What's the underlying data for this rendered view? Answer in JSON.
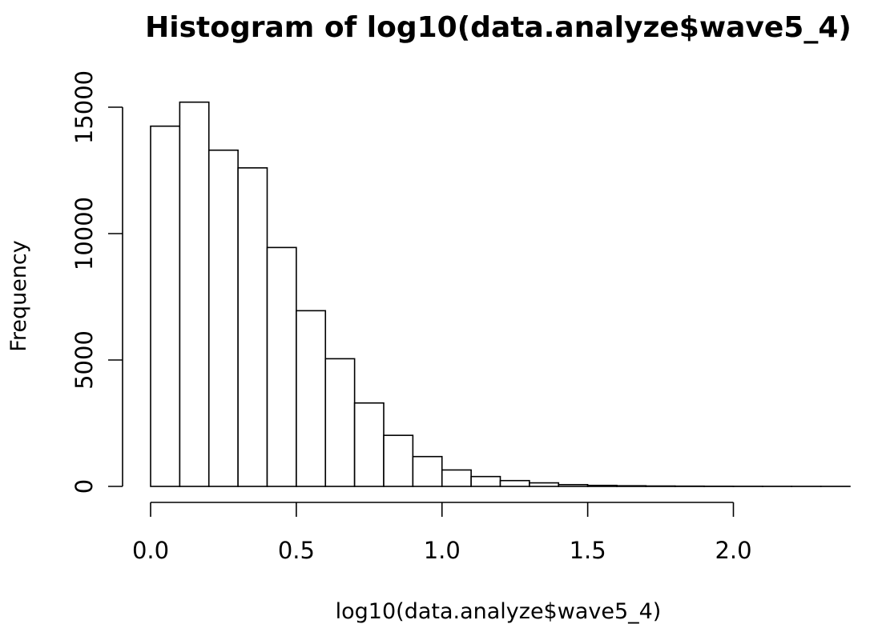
{
  "chart_data": {
    "type": "bar",
    "title": "Histogram of log10(data.analyze$wave5_4)",
    "xlabel": "log10(data.analyze$wave5_4)",
    "ylabel": "Frequency",
    "xlim": [
      0,
      2.4
    ],
    "ylim": [
      0,
      15500
    ],
    "x_ticks": [
      0.0,
      0.5,
      1.0,
      1.5,
      2.0
    ],
    "x_tick_labels": [
      "0.0",
      "0.5",
      "1.0",
      "1.5",
      "2.0"
    ],
    "y_ticks": [
      0,
      5000,
      10000,
      15000
    ],
    "y_tick_labels": [
      "0",
      "5000",
      "10000",
      "15000"
    ],
    "bin_width": 0.1,
    "bin_edges": [
      0.0,
      0.1,
      0.2,
      0.3,
      0.4,
      0.5,
      0.6,
      0.7,
      0.8,
      0.9,
      1.0,
      1.1,
      1.2,
      1.3,
      1.4,
      1.5,
      1.6,
      1.7,
      1.8,
      1.9,
      2.0,
      2.1,
      2.2,
      2.3,
      2.4
    ],
    "values": [
      14250,
      15200,
      13300,
      12600,
      9450,
      6950,
      5050,
      3300,
      2020,
      1180,
      650,
      390,
      230,
      140,
      70,
      40,
      25,
      15,
      10,
      6,
      4,
      3,
      2,
      2
    ],
    "grid": false,
    "legend": "none"
  }
}
